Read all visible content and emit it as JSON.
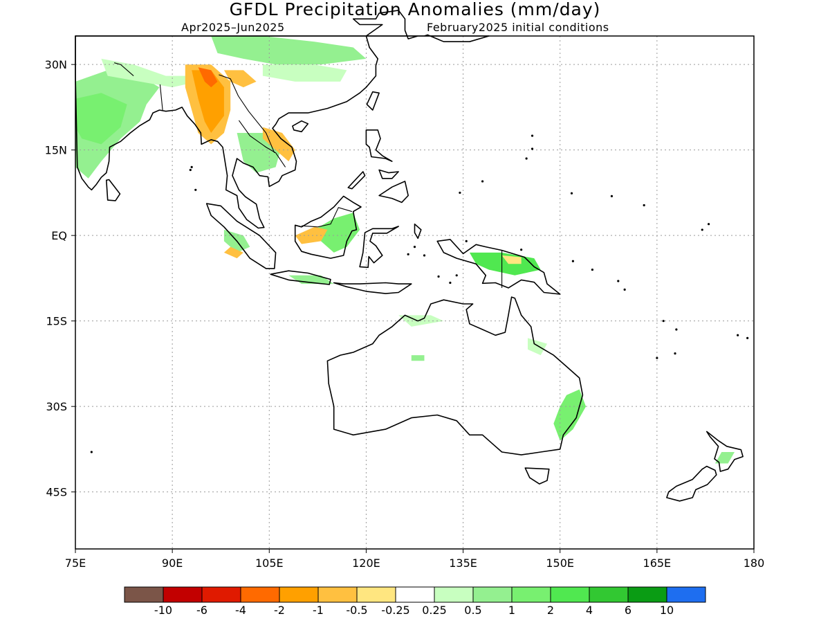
{
  "title": "GFDL Precipitation Anomalies (mm/day)",
  "period": "Apr2025–Jun2025",
  "init": "February2025 initial conditions",
  "map": {
    "lon_range": [
      75,
      180
    ],
    "lat_range": [
      -55,
      35
    ],
    "lon_ticks": [
      {
        "value": 75,
        "label": "75E"
      },
      {
        "value": 90,
        "label": "90E"
      },
      {
        "value": 105,
        "label": "105E"
      },
      {
        "value": 120,
        "label": "120E"
      },
      {
        "value": 135,
        "label": "135E"
      },
      {
        "value": 150,
        "label": "150E"
      },
      {
        "value": 165,
        "label": "165E"
      },
      {
        "value": 180,
        "label": "180"
      }
    ],
    "lat_ticks": [
      {
        "value": 30,
        "label": "30N"
      },
      {
        "value": 15,
        "label": "15N"
      },
      {
        "value": 0,
        "label": "EQ"
      },
      {
        "value": -15,
        "label": "15S"
      },
      {
        "value": -30,
        "label": "30S"
      },
      {
        "value": -45,
        "label": "45S"
      }
    ],
    "grid": true
  },
  "colorbar": {
    "colors": [
      "#7b5548",
      "#c20000",
      "#e01a00",
      "#ff6a00",
      "#ffa000",
      "#ffc040",
      "#ffe680",
      "#ffffff",
      "#c8ffc0",
      "#94f090",
      "#78f070",
      "#50e850",
      "#32c832",
      "#0a9c14",
      "#1e6ef0"
    ],
    "labels": [
      "-10",
      "-6",
      "-4",
      "-2",
      "-1",
      "-0.5",
      "-0.25",
      "0.25",
      "0.5",
      "1",
      "2",
      "4",
      "6",
      "10"
    ]
  },
  "anomaly_regions": [
    {
      "name": "india-wet",
      "color": "#94f090",
      "points": [
        [
          75,
          27
        ],
        [
          80,
          29
        ],
        [
          85,
          28
        ],
        [
          88,
          26
        ],
        [
          86,
          23
        ],
        [
          85,
          20
        ],
        [
          82,
          17
        ],
        [
          79,
          13
        ],
        [
          77,
          10
        ],
        [
          75,
          12
        ]
      ]
    },
    {
      "name": "india-wet-core",
      "color": "#78f070",
      "points": [
        [
          75,
          24
        ],
        [
          79,
          25
        ],
        [
          83,
          23
        ],
        [
          82,
          19
        ],
        [
          79,
          16
        ],
        [
          76,
          17
        ],
        [
          75,
          19
        ]
      ]
    },
    {
      "name": "himalaya-wet",
      "color": "#c8ffc0",
      "points": [
        [
          79,
          31
        ],
        [
          84,
          30
        ],
        [
          89,
          28
        ],
        [
          93,
          28
        ],
        [
          94,
          27
        ],
        [
          90,
          26
        ],
        [
          85,
          27
        ],
        [
          80,
          28
        ]
      ]
    },
    {
      "name": "tibet-wet",
      "color": "#94f090",
      "points": [
        [
          96,
          35
        ],
        [
          104,
          35
        ],
        [
          112,
          34
        ],
        [
          118,
          33
        ],
        [
          120,
          31
        ],
        [
          113,
          30
        ],
        [
          106,
          30
        ],
        [
          101,
          31
        ],
        [
          97,
          32
        ]
      ]
    },
    {
      "name": "tibet-wet-pale",
      "color": "#c8ffc0",
      "points": [
        [
          104,
          30
        ],
        [
          112,
          30
        ],
        [
          117,
          29
        ],
        [
          116,
          27
        ],
        [
          109,
          27
        ],
        [
          104,
          28
        ]
      ]
    },
    {
      "name": "myanmar-dry-1",
      "color": "#ffc040",
      "points": [
        [
          92,
          30
        ],
        [
          96,
          30
        ],
        [
          99,
          27
        ],
        [
          99,
          22
        ],
        [
          98,
          18
        ],
        [
          96,
          16
        ],
        [
          94,
          18
        ],
        [
          93,
          22
        ],
        [
          92,
          26
        ]
      ]
    },
    {
      "name": "myanmar-dry-2",
      "color": "#ffa000",
      "points": [
        [
          93,
          29
        ],
        [
          96,
          29
        ],
        [
          98,
          26
        ],
        [
          98,
          21
        ],
        [
          96,
          18
        ],
        [
          95,
          20
        ],
        [
          94,
          24
        ]
      ]
    },
    {
      "name": "myanmar-dry-3",
      "color": "#ff6a00",
      "points": [
        [
          94,
          29.5
        ],
        [
          96,
          29
        ],
        [
          97,
          27
        ],
        [
          96,
          26
        ],
        [
          95,
          27
        ]
      ]
    },
    {
      "name": "yunnan-dry",
      "color": "#ffc040",
      "points": [
        [
          98,
          29
        ],
        [
          101,
          29
        ],
        [
          103,
          27
        ],
        [
          101,
          26
        ],
        [
          99,
          27
        ]
      ]
    },
    {
      "name": "indochina-wet",
      "color": "#94f090",
      "points": [
        [
          100,
          18
        ],
        [
          104,
          18
        ],
        [
          107,
          16
        ],
        [
          106,
          12
        ],
        [
          103,
          11
        ],
        [
          101,
          13
        ]
      ]
    },
    {
      "name": "vietnam-dry",
      "color": "#ffc040",
      "points": [
        [
          104,
          19
        ],
        [
          107,
          18
        ],
        [
          109,
          15
        ],
        [
          108,
          13
        ],
        [
          106,
          15
        ],
        [
          104,
          17
        ]
      ]
    },
    {
      "name": "borneo-wet",
      "color": "#78f070",
      "points": [
        [
          112,
          1
        ],
        [
          115,
          3
        ],
        [
          118,
          4
        ],
        [
          119,
          1
        ],
        [
          117,
          -2
        ],
        [
          115,
          -3
        ],
        [
          113,
          -1
        ]
      ]
    },
    {
      "name": "borneo-dry",
      "color": "#ffc040",
      "points": [
        [
          109,
          0
        ],
        [
          112,
          1.5
        ],
        [
          114,
          1
        ],
        [
          113,
          -1
        ],
        [
          110,
          -1.5
        ]
      ]
    },
    {
      "name": "sumatra-wet",
      "color": "#94f090",
      "points": [
        [
          98,
          1
        ],
        [
          101,
          0
        ],
        [
          102,
          -2
        ],
        [
          100,
          -3
        ],
        [
          98,
          -1
        ]
      ]
    },
    {
      "name": "sumatra-dry",
      "color": "#ffc040",
      "points": [
        [
          99,
          -2
        ],
        [
          101,
          -3
        ],
        [
          100,
          -4
        ],
        [
          98,
          -3
        ]
      ]
    },
    {
      "name": "new-guinea-wet",
      "color": "#50e850",
      "points": [
        [
          136,
          -3
        ],
        [
          141,
          -3
        ],
        [
          146,
          -4
        ],
        [
          147,
          -6
        ],
        [
          143,
          -7
        ],
        [
          139,
          -6
        ],
        [
          137,
          -5
        ]
      ]
    },
    {
      "name": "new-guinea-dry",
      "color": "#ffe680",
      "points": [
        [
          141,
          -3.5
        ],
        [
          144,
          -3.8
        ],
        [
          144,
          -5
        ],
        [
          142,
          -5
        ]
      ]
    },
    {
      "name": "java-wet",
      "color": "#94f090",
      "points": [
        [
          108,
          -7
        ],
        [
          113,
          -7
        ],
        [
          115,
          -8.5
        ],
        [
          110,
          -8.5
        ]
      ]
    },
    {
      "name": "nw-australia-wet",
      "color": "#c8ffc0",
      "points": [
        [
          125,
          -14
        ],
        [
          130,
          -14
        ],
        [
          132,
          -15
        ],
        [
          127,
          -16
        ]
      ]
    },
    {
      "name": "ne-australia-wet",
      "color": "#c8ffc0",
      "points": [
        [
          145,
          -18
        ],
        [
          148,
          -19
        ],
        [
          147,
          -21
        ],
        [
          145,
          -20
        ]
      ]
    },
    {
      "name": "e-australia-wet",
      "color": "#78f070",
      "points": [
        [
          151,
          -28
        ],
        [
          153,
          -27
        ],
        [
          154,
          -30
        ],
        [
          152,
          -34
        ],
        [
          150,
          -36
        ],
        [
          149,
          -33
        ],
        [
          150,
          -30
        ]
      ]
    },
    {
      "name": "nz-wet",
      "color": "#94f090",
      "points": [
        [
          175,
          -38
        ],
        [
          177,
          -38
        ],
        [
          176,
          -40
        ],
        [
          174,
          -40
        ]
      ]
    },
    {
      "name": "aus-interior-wet",
      "color": "#94f090",
      "points": [
        [
          127,
          -21
        ],
        [
          129,
          -21
        ],
        [
          129,
          -22
        ],
        [
          127,
          -22
        ]
      ]
    }
  ]
}
